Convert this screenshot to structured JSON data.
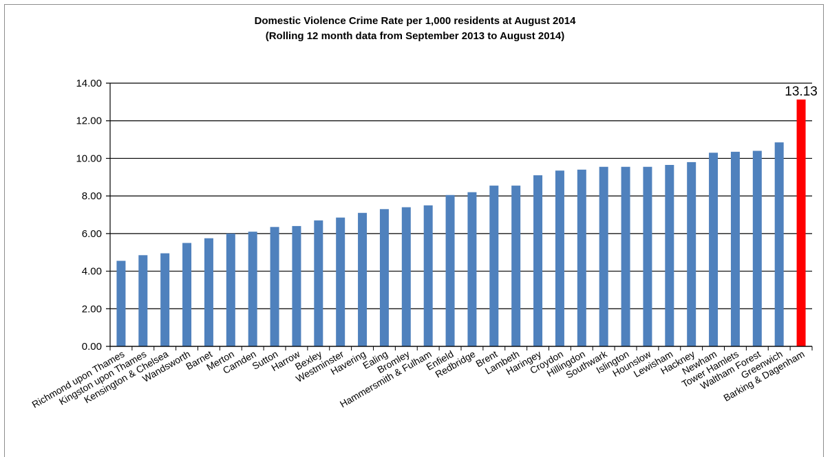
{
  "chart_data": {
    "type": "bar",
    "title": "Domestic Violence Crime Rate per 1,000 residents at August 2014",
    "subtitle": "(Rolling 12 month data from September 2013 to August 2014)",
    "xlabel": "",
    "ylabel": "",
    "ylim": [
      0,
      14
    ],
    "yticks": [
      "0.00",
      "2.00",
      "4.00",
      "6.00",
      "8.00",
      "10.00",
      "12.00",
      "14.00"
    ],
    "grid": true,
    "legend": "none",
    "colors": {
      "default_bar": "#4f81bd",
      "highlight_bar": "#ff0000"
    },
    "highlight_index": 31,
    "categories": [
      "Richmond upon Thames",
      "Kingston upon Thames",
      "Kensington & Chelsea",
      "Wandsworth",
      "Barnet",
      "Merton",
      "Camden",
      "Sutton",
      "Harrow",
      "Bexley",
      "Westminster",
      "Havering",
      "Ealing",
      "Bromley",
      "Hammersmith & Fulham",
      "Enfield",
      "Redbridge",
      "Brent",
      "Lambeth",
      "Haringey",
      "Croydon",
      "Hillingdon",
      "Southwark",
      "Islington",
      "Hounslow",
      "Lewisham",
      "Hackney",
      "Newham",
      "Tower Hamlets",
      "Waltham Forest",
      "Greenwich",
      "Barking & Dagenham"
    ],
    "values": [
      4.55,
      4.85,
      4.95,
      5.5,
      5.75,
      6.0,
      6.1,
      6.35,
      6.4,
      6.7,
      6.85,
      7.1,
      7.3,
      7.4,
      7.5,
      8.05,
      8.2,
      8.55,
      8.55,
      9.1,
      9.35,
      9.4,
      9.55,
      9.55,
      9.55,
      9.65,
      9.8,
      10.3,
      10.35,
      10.4,
      10.85,
      13.13
    ],
    "data_labels": [
      {
        "index": 31,
        "text": "13.13"
      }
    ]
  }
}
